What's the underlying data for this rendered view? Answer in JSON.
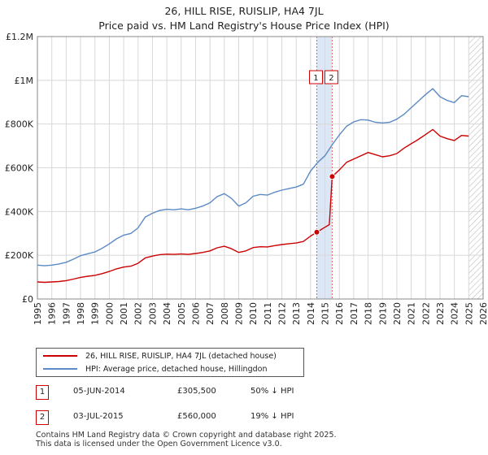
{
  "header": {
    "title": "26, HILL RISE, RUISLIP, HA4 7JL",
    "subtitle": "Price paid vs. HM Land Registry's House Price Index (HPI)"
  },
  "legend": {
    "property_label": "26, HILL RISE, RUISLIP, HA4 7JL (detached house)",
    "hpi_label": "HPI: Average price, detached house, Hillingdon"
  },
  "sales": [
    {
      "marker": "1",
      "date": "05-JUN-2014",
      "price": "£305,500",
      "hpi_diff": "50% ↓ HPI"
    },
    {
      "marker": "2",
      "date": "03-JUL-2015",
      "price": "£560,000",
      "hpi_diff": "19% ↓ HPI"
    }
  ],
  "footer": {
    "line1": "Contains HM Land Registry data © Crown copyright and database right 2025.",
    "line2": "This data is licensed under the Open Government Licence v3.0."
  },
  "colors": {
    "property": "#cc0000",
    "hpi": "#5b8ac4",
    "grid": "#d8d8d8",
    "shade": "#dde6f4"
  },
  "chart_data": {
    "type": "line",
    "title": "26, HILL RISE, RUISLIP, HA4 7JL",
    "subtitle": "Price paid vs. HM Land Registry's House Price Index (HPI)",
    "xlabel": "",
    "ylabel": "",
    "xlim": [
      1995,
      2026
    ],
    "ylim": [
      0,
      1200000
    ],
    "grid": true,
    "legend_position": "below",
    "x_ticks": [
      1995,
      1996,
      1997,
      1998,
      1999,
      2000,
      2001,
      2002,
      2003,
      2004,
      2005,
      2006,
      2007,
      2008,
      2009,
      2010,
      2011,
      2012,
      2013,
      2014,
      2015,
      2016,
      2017,
      2018,
      2019,
      2020,
      2021,
      2022,
      2023,
      2024,
      2025,
      2026
    ],
    "y_ticks": [
      {
        "value": 0,
        "label": "£0"
      },
      {
        "value": 200000,
        "label": "£200K"
      },
      {
        "value": 400000,
        "label": "£400K"
      },
      {
        "value": 600000,
        "label": "£600K"
      },
      {
        "value": 800000,
        "label": "£800K"
      },
      {
        "value": 1000000,
        "label": "£1M"
      },
      {
        "value": 1200000,
        "label": "£1.2M"
      }
    ],
    "series": [
      {
        "name": "HPI: Average price, detached house, Hillingdon",
        "x": [
          1995.0,
          1995.5,
          1996.0,
          1996.5,
          1997.0,
          1997.5,
          1998.0,
          1998.5,
          1999.0,
          1999.5,
          2000.0,
          2000.5,
          2001.0,
          2001.5,
          2002.0,
          2002.5,
          2003.0,
          2003.5,
          2004.0,
          2004.5,
          2005.0,
          2005.5,
          2006.0,
          2006.5,
          2007.0,
          2007.5,
          2008.0,
          2008.5,
          2009.0,
          2009.5,
          2010.0,
          2010.5,
          2011.0,
          2011.5,
          2012.0,
          2012.5,
          2013.0,
          2013.5,
          2014.0,
          2014.5,
          2015.0,
          2015.5,
          2016.0,
          2016.5,
          2017.0,
          2017.5,
          2018.0,
          2018.5,
          2019.0,
          2019.5,
          2020.0,
          2020.5,
          2021.0,
          2021.5,
          2022.0,
          2022.5,
          2023.0,
          2023.5,
          2024.0,
          2024.5,
          2025.0
        ],
        "values": [
          155000,
          152000,
          155000,
          160000,
          168000,
          182000,
          198000,
          207000,
          215000,
          232000,
          252000,
          275000,
          292000,
          300000,
          325000,
          375000,
          392000,
          405000,
          410000,
          408000,
          412000,
          408000,
          415000,
          425000,
          440000,
          468000,
          482000,
          460000,
          425000,
          440000,
          470000,
          478000,
          475000,
          488000,
          498000,
          505000,
          512000,
          525000,
          585000,
          625000,
          655000,
          705000,
          750000,
          790000,
          810000,
          820000,
          818000,
          808000,
          805000,
          808000,
          822000,
          845000,
          875000,
          905000,
          935000,
          962000,
          925000,
          908000,
          898000,
          930000,
          925000
        ]
      },
      {
        "name": "26, HILL RISE, RUISLIP, HA4 7JL (detached house)",
        "x": [
          1995.0,
          1995.5,
          1996.0,
          1996.5,
          1997.0,
          1997.5,
          1998.0,
          1998.5,
          1999.0,
          1999.5,
          2000.0,
          2000.5,
          2001.0,
          2001.5,
          2002.0,
          2002.5,
          2003.0,
          2003.5,
          2004.0,
          2004.5,
          2005.0,
          2005.5,
          2006.0,
          2006.5,
          2007.0,
          2007.5,
          2008.0,
          2008.5,
          2009.0,
          2009.5,
          2010.0,
          2010.5,
          2011.0,
          2011.5,
          2012.0,
          2012.5,
          2013.0,
          2013.5,
          2014.0,
          2014.43,
          2014.75,
          2015.0,
          2015.3,
          2015.5,
          2016.0,
          2016.5,
          2017.0,
          2017.5,
          2018.0,
          2018.5,
          2019.0,
          2019.5,
          2020.0,
          2020.5,
          2021.0,
          2021.5,
          2022.0,
          2022.5,
          2023.0,
          2023.5,
          2024.0,
          2024.5,
          2025.0
        ],
        "values": [
          78000,
          76000,
          78000,
          80000,
          84000,
          91000,
          99000,
          104000,
          108000,
          116000,
          126000,
          138000,
          146000,
          150000,
          163000,
          188000,
          196000,
          203000,
          205000,
          204000,
          206000,
          204000,
          208000,
          213000,
          220000,
          234000,
          241000,
          230000,
          213000,
          220000,
          235000,
          239000,
          238000,
          244000,
          249000,
          253000,
          256000,
          263000,
          288000,
          305500,
          318000,
          328000,
          340000,
          560000,
          590000,
          625000,
          640000,
          655000,
          670000,
          660000,
          650000,
          655000,
          665000,
          690000,
          710000,
          730000,
          752000,
          775000,
          745000,
          733000,
          725000,
          748000,
          745000
        ]
      }
    ],
    "sales_markers": [
      {
        "label": "1",
        "x": 2014.43,
        "value": 305500
      },
      {
        "label": "2",
        "x": 2015.5,
        "value": 560000
      }
    ],
    "shaded_band": [
      2014.43,
      2015.5
    ],
    "hatched_from": 2025.0
  }
}
